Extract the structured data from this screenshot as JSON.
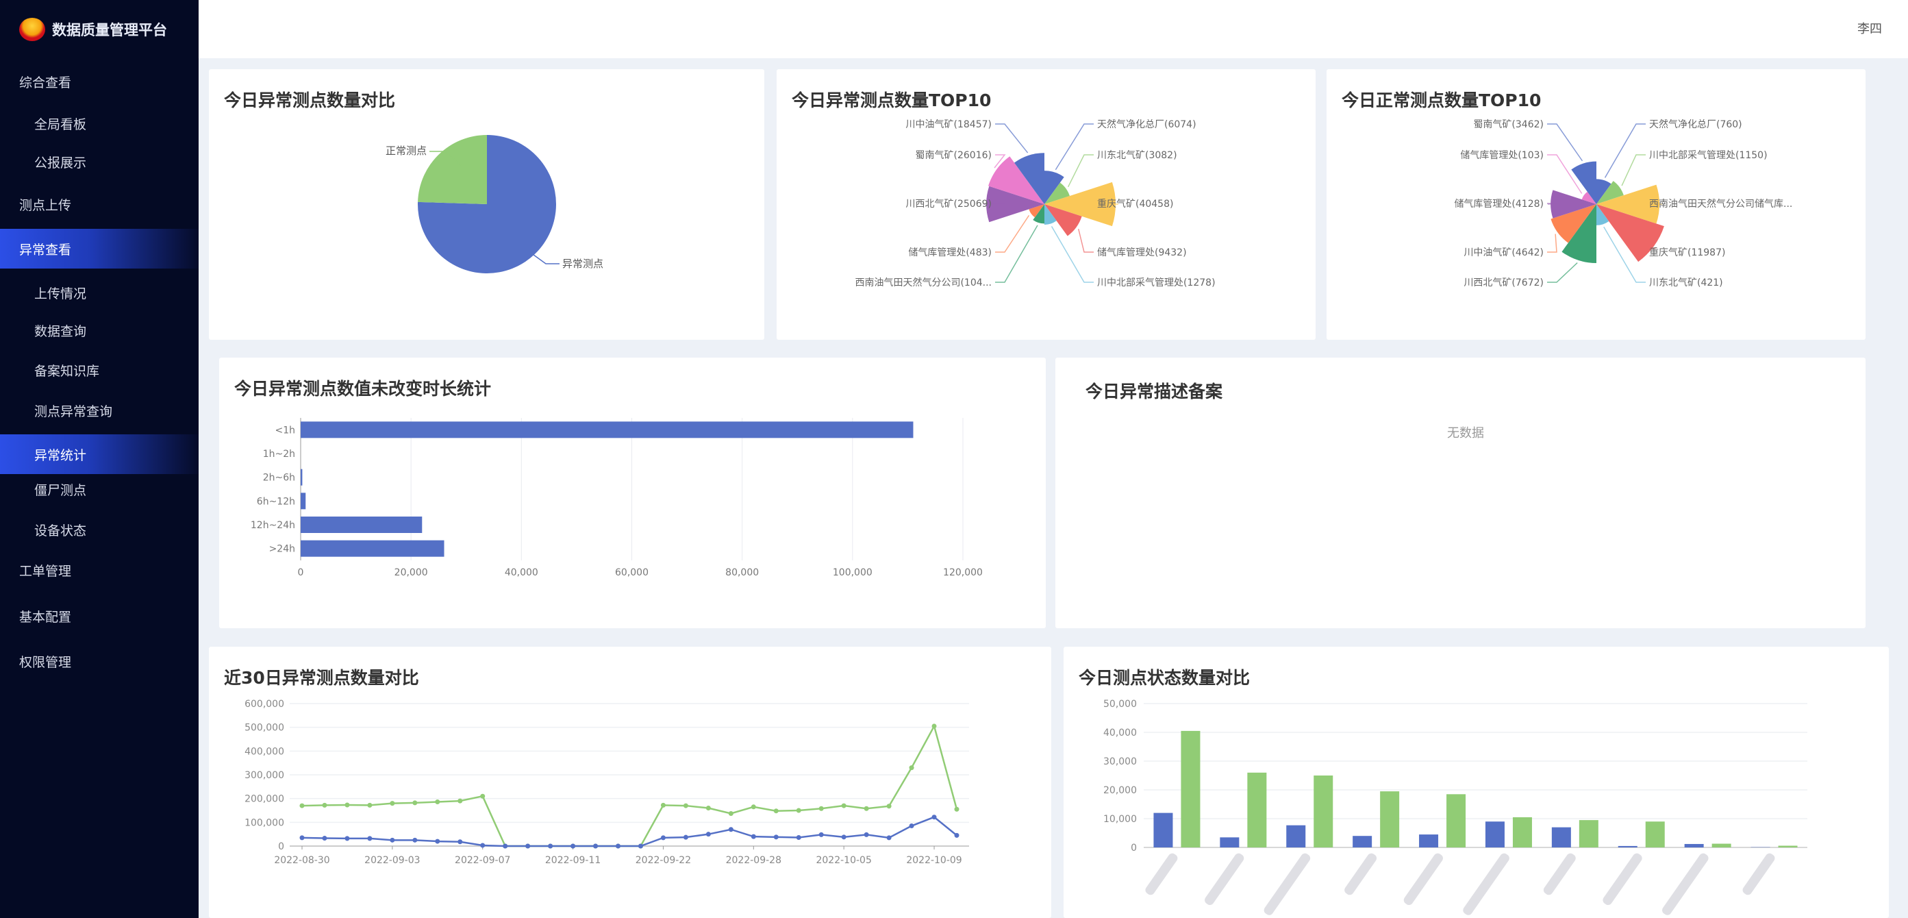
{
  "app": {
    "title": "数据质量管理平台",
    "user": "李四"
  },
  "sidebar": {
    "items": [
      {
        "label": "综合查看",
        "level": 1
      },
      {
        "label": "全局看板",
        "level": 2
      },
      {
        "label": "公报展示",
        "level": 2
      },
      {
        "label": "测点上传",
        "level": 1
      },
      {
        "label": "异常查看",
        "level": 1,
        "active": true
      },
      {
        "label": "上传情况",
        "level": 2
      },
      {
        "label": "数据查询",
        "level": 2
      },
      {
        "label": "备案知识库",
        "level": 2
      },
      {
        "label": "测点异常查询",
        "level": 2
      },
      {
        "label": "异常统计",
        "level": 2,
        "active": true
      },
      {
        "label": "僵尸测点",
        "level": 2
      },
      {
        "label": "设备状态",
        "level": 2
      },
      {
        "label": "工单管理",
        "level": 1
      },
      {
        "label": "基本配置",
        "level": 1
      },
      {
        "label": "权限管理",
        "level": 1
      }
    ]
  },
  "colors": {
    "palette": [
      "#5470c6",
      "#91cc75",
      "#fac858",
      "#ee6666",
      "#73c0de",
      "#3ba272",
      "#fc8452",
      "#9a60b4",
      "#ea7ccc",
      "#5470c6"
    ],
    "sidebar_bg": "#040a24",
    "active": "#2c4fe6"
  },
  "cards": {
    "describe": {
      "title": "今日异常描述备案",
      "empty": "无数据"
    }
  },
  "chart_data": [
    {
      "id": "pie",
      "type": "pie",
      "title": "今日异常测点数量对比",
      "slices": [
        {
          "name": "异常测点",
          "share": 0.755
        },
        {
          "name": "正常测点",
          "share": 0.245
        }
      ]
    },
    {
      "id": "rose-abnormal",
      "type": "pie",
      "rose": true,
      "title": "今日异常测点数量TOP10",
      "slices": [
        {
          "label": "天然气净化总厂(6074)",
          "value": 6074
        },
        {
          "label": "川东北气矿(3082)",
          "value": 3082
        },
        {
          "label": "重庆气矿(40458)",
          "value": 40458
        },
        {
          "label": "储气库管理处(9432)",
          "value": 9432
        },
        {
          "label": "川中北部采气管理处(1278)",
          "value": 1278
        },
        {
          "label": "西南油气田天然气分公司(104...",
          "value": 1040
        },
        {
          "label": "储气库管理处(483)",
          "value": 483
        },
        {
          "label": "川西北气矿(25069)",
          "value": 25069
        },
        {
          "label": "蜀南气矿(26016)",
          "value": 26016
        },
        {
          "label": "川中油气矿(18457)",
          "value": 18457
        }
      ]
    },
    {
      "id": "rose-normal",
      "type": "pie",
      "rose": true,
      "title": "今日正常测点数量TOP10",
      "slices": [
        {
          "label": "天然气净化总厂(760)",
          "value": 760
        },
        {
          "label": "川中北部采气管理处(1150)",
          "value": 1150
        },
        {
          "label": "西南油气田天然气分公司储气库...",
          "value": 9000
        },
        {
          "label": "重庆气矿(11987)",
          "value": 11987
        },
        {
          "label": "川东北气矿(421)",
          "value": 421
        },
        {
          "label": "川西北气矿(7672)",
          "value": 7672
        },
        {
          "label": "川中油气矿(4642)",
          "value": 4642
        },
        {
          "label": "储气库管理处(4128)",
          "value": 4128
        },
        {
          "label": "储气库管理处(103)",
          "value": 103
        },
        {
          "label": "蜀南气矿(3462)",
          "value": 3462
        }
      ]
    },
    {
      "id": "duration",
      "type": "bar",
      "orientation": "horizontal",
      "title": "今日异常测点数值未改变时长统计",
      "categories": [
        "<1h",
        "1h~2h",
        "2h~6h",
        "6h~12h",
        "12h~24h",
        ">24h"
      ],
      "values": [
        111000,
        0,
        300,
        900,
        22000,
        26000
      ],
      "xlim": [
        0,
        120000
      ],
      "xticks": [
        "0",
        "20,000",
        "40,000",
        "60,000",
        "80,000",
        "100,000",
        "120,000"
      ],
      "grid": true
    },
    {
      "id": "trend",
      "type": "line",
      "title": "近30日异常测点数量对比",
      "x_labels": [
        "2022-08-30",
        null,
        null,
        null,
        "2022-09-03",
        null,
        null,
        null,
        "2022-09-07",
        null,
        null,
        null,
        "2022-09-11",
        null,
        null,
        null,
        "2022-09-22",
        null,
        null,
        null,
        "2022-09-28",
        null,
        null,
        null,
        "2022-10-05",
        null,
        null,
        null,
        "2022-10-09",
        null
      ],
      "series": [
        {
          "color": "#91cc75",
          "values": [
            170000,
            172000,
            173000,
            172000,
            180000,
            182000,
            186000,
            190000,
            210000,
            0,
            0,
            0,
            0,
            0,
            0,
            0,
            172000,
            170000,
            160000,
            137000,
            165000,
            148000,
            150000,
            158000,
            170000,
            158000,
            168000,
            330000,
            505000,
            155000
          ]
        },
        {
          "color": "#5470c6",
          "values": [
            35000,
            33000,
            32000,
            32000,
            25000,
            25000,
            20000,
            18000,
            3000,
            0,
            0,
            0,
            0,
            0,
            0,
            0,
            35000,
            37000,
            50000,
            70000,
            40000,
            38000,
            36000,
            48000,
            38000,
            48000,
            35000,
            85000,
            122000,
            45000
          ]
        }
      ],
      "ylim": [
        0,
        600000
      ],
      "yticks": [
        "0",
        "100,000",
        "200,000",
        "300,000",
        "400,000",
        "500,000",
        "600,000"
      ],
      "grid": true
    },
    {
      "id": "status",
      "type": "bar",
      "title": "今日测点状态数量对比",
      "series": [
        {
          "color": "#5470c6",
          "values": [
            12000,
            3500,
            7700,
            4000,
            4500,
            9000,
            7000,
            500,
            1200,
            100
          ]
        },
        {
          "color": "#91cc75",
          "values": [
            40500,
            26000,
            25000,
            19500,
            18500,
            10500,
            9500,
            9000,
            1300,
            600
          ]
        }
      ],
      "ylim": [
        0,
        50000
      ],
      "yticks": [
        "0",
        "10,000",
        "20,000",
        "30,000",
        "40,000",
        "50,000"
      ],
      "grid": true
    }
  ]
}
